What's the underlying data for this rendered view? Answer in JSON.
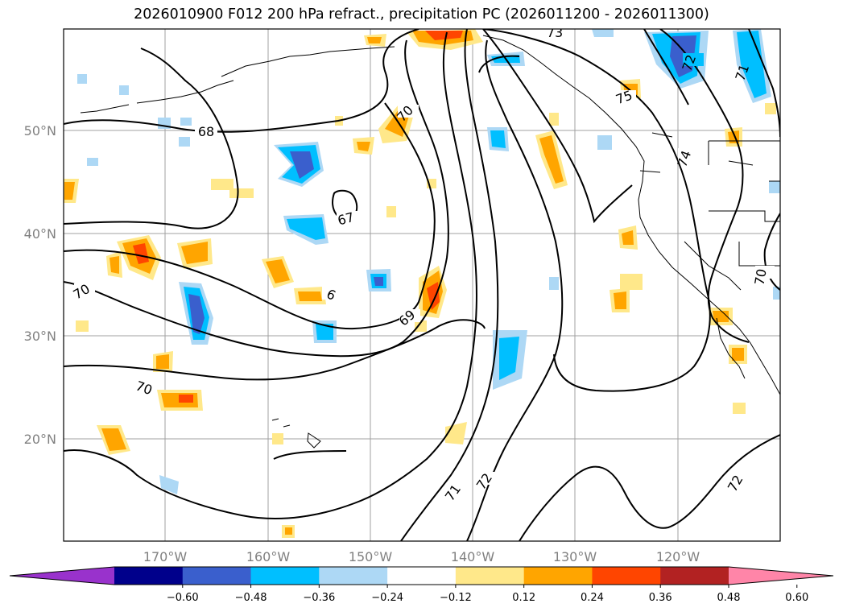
{
  "title": "2026010900 F012 200 hPa refract., precipitation PC (2026011200 - 2026011300)",
  "lat_labels": [
    "50°N",
    "40°N",
    "30°N",
    "20°N"
  ],
  "lon_labels": [
    "170°W",
    "160°W",
    "150°W",
    "140°W",
    "130°W",
    "120°W"
  ],
  "colorbar": {
    "colors": [
      "#9932cc",
      "#00008b",
      "#3a5fcd",
      "#00bfff",
      "#add8f5",
      "#ffffff",
      "#ffe88a",
      "#ffa500",
      "#ff4500",
      "#b22222",
      "#ff85a8"
    ],
    "tick_labels": [
      "−0.60",
      "−0.48",
      "−0.36",
      "−0.24",
      "−0.12",
      "0.12",
      "0.24",
      "0.36",
      "0.48",
      "0.60"
    ]
  },
  "contour_labels": [
    "73",
    "72",
    "71",
    "70",
    "75",
    "68",
    "74",
    "67",
    "70",
    "6",
    "70",
    "69",
    "70",
    "71",
    "72",
    "72"
  ]
}
